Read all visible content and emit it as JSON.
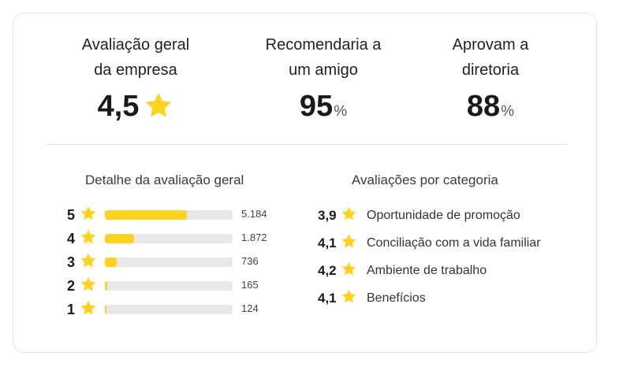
{
  "summary": {
    "overall": {
      "title_line1": "Avaliação geral",
      "title_line2": "da empresa",
      "value": "4,5"
    },
    "recommend": {
      "title_line1": "Recomendaria a",
      "title_line2": "um amigo",
      "value": "95",
      "unit": "%"
    },
    "approve": {
      "title_line1": "Aprovam a",
      "title_line2": "diretoria",
      "value": "88",
      "unit": "%"
    }
  },
  "breakdown": {
    "title": "Detalhe da avaliação geral",
    "rows": [
      {
        "stars": "5",
        "count": "5.184",
        "fraction": 0.64
      },
      {
        "stars": "4",
        "count": "1.872",
        "fraction": 0.23
      },
      {
        "stars": "3",
        "count": "736",
        "fraction": 0.09
      },
      {
        "stars": "2",
        "count": "165",
        "fraction": 0.02
      },
      {
        "stars": "1",
        "count": "124",
        "fraction": 0.015
      }
    ]
  },
  "categories": {
    "title": "Avaliações por categoria",
    "items": [
      {
        "score": "3,9",
        "label": "Oportunidade de promoção"
      },
      {
        "score": "4,1",
        "label": "Conciliação com a vida familiar"
      },
      {
        "score": "4,2",
        "label": "Ambiente de trabalho"
      },
      {
        "score": "4,1",
        "label": "Benefícios"
      }
    ]
  },
  "colors": {
    "star": "#FFD21F",
    "bar_track": "#E8E8EA",
    "bar_fill": "#FFD21F"
  },
  "icons": {
    "rating": "star-icon"
  }
}
